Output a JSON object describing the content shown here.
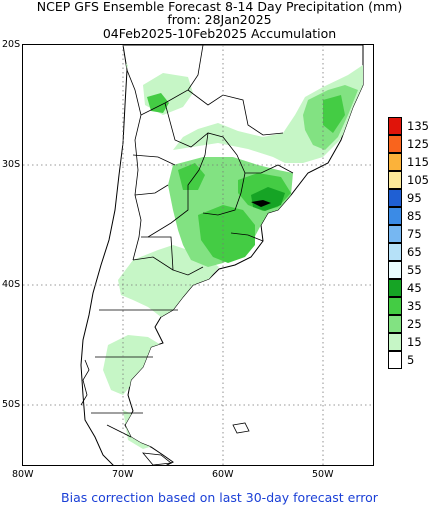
{
  "title": {
    "line1": "NCEP GFS Ensemble Forecast 8-14 Day Precipitation (mm)",
    "line2": "from: 28Jan2025",
    "line3": "04Feb2025-10Feb2025 Accumulation"
  },
  "map": {
    "lat_labels": [
      "20S",
      "30S",
      "40S",
      "50S"
    ],
    "lon_labels": [
      "80W",
      "70W",
      "60W",
      "50W"
    ],
    "grid": "dotted"
  },
  "legend": {
    "items": [
      {
        "value": "135",
        "color": "#e0140a"
      },
      {
        "value": "125",
        "color": "#f9641d"
      },
      {
        "value": "115",
        "color": "#fbb23a"
      },
      {
        "value": "105",
        "color": "#fbe898"
      },
      {
        "value": "95",
        "color": "#1f5fd3"
      },
      {
        "value": "85",
        "color": "#3b8be6"
      },
      {
        "value": "75",
        "color": "#76b7f2"
      },
      {
        "value": "65",
        "color": "#b6e1f8"
      },
      {
        "value": "55",
        "color": "#e7fbfd"
      },
      {
        "value": "45",
        "color": "#16a425"
      },
      {
        "value": "35",
        "color": "#44cc44"
      },
      {
        "value": "25",
        "color": "#82e282"
      },
      {
        "value": "15",
        "color": "#c6f6c6"
      },
      {
        "value": "5",
        "color": "#ffffff"
      }
    ]
  },
  "footer": "Bias correction based on last 30-day forecast error"
}
